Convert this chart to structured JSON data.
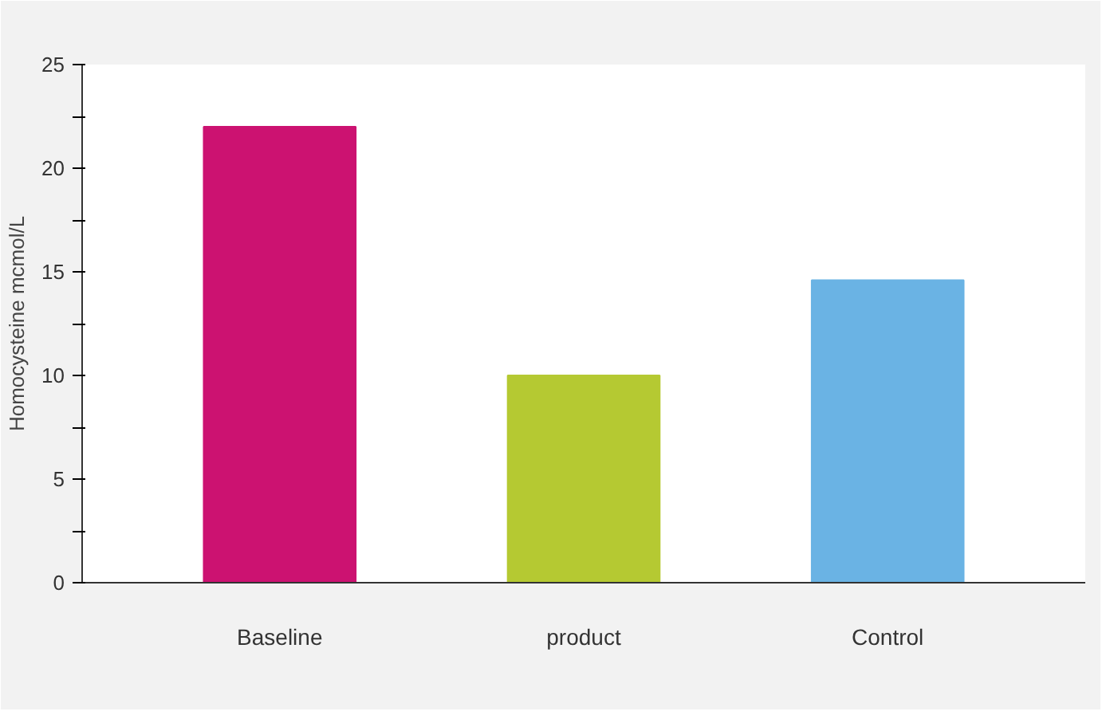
{
  "chart_data": {
    "type": "bar",
    "ylabel": "Homocysteine mcmol/L",
    "categories": [
      "Baseline",
      "product",
      "Control"
    ],
    "values": [
      22,
      10,
      14.6
    ],
    "colors": [
      "#cc1271",
      "#b5c932",
      "#6ab3e4"
    ],
    "ylim": [
      0,
      25
    ],
    "yticks": [
      0,
      {
        "value": 2.5,
        "label": null
      },
      5,
      {
        "value": 7.5,
        "label": null
      },
      10,
      {
        "value": 12.5,
        "label": null
      },
      15,
      {
        "value": 17.5,
        "label": null
      },
      20,
      {
        "value": 22.5,
        "label": null
      },
      25
    ],
    "grid": false
  }
}
